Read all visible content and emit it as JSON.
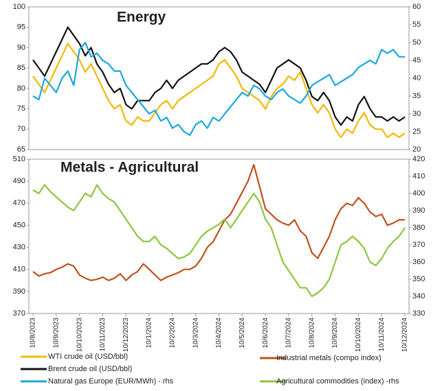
{
  "chart_data": [
    {
      "type": "line",
      "title": "Energy",
      "ylim": [
        65,
        100
      ],
      "yticks": [
        65,
        70,
        75,
        80,
        85,
        90,
        95,
        100
      ],
      "y2lim": [
        20,
        60
      ],
      "y2ticks": [
        20,
        25,
        30,
        35,
        40,
        45,
        50,
        55,
        60
      ],
      "series": [
        {
          "name": "WTI crude oil (USD/bbl)",
          "color": "#f5b800",
          "values": [
            83,
            81,
            79,
            82,
            85,
            88,
            91,
            89,
            87,
            84,
            86,
            83,
            80,
            77,
            75,
            76,
            72,
            71,
            73,
            72,
            72,
            74,
            76,
            77,
            75,
            77,
            78,
            79,
            80,
            81,
            82,
            83,
            86,
            87,
            85,
            83,
            80,
            79,
            78,
            77,
            75,
            78,
            80,
            81,
            83,
            82,
            84,
            80,
            76,
            74,
            76,
            74,
            70,
            68,
            70,
            69,
            72,
            74,
            71,
            70,
            70,
            68,
            69,
            68,
            69
          ]
        },
        {
          "name": "Brent crude oil (USD/bbl)",
          "color": "#111111",
          "values": [
            87,
            85,
            83,
            86,
            89,
            92,
            95,
            93,
            91,
            88,
            90,
            86,
            84,
            81,
            79,
            80,
            76,
            75,
            77,
            77,
            77,
            79,
            80,
            82,
            80,
            82,
            83,
            84,
            85,
            86,
            86,
            87,
            89,
            90,
            89,
            87,
            84,
            83,
            82,
            81,
            79,
            82,
            85,
            86,
            87,
            86,
            85,
            82,
            78,
            77,
            79,
            77,
            73,
            71,
            73,
            72,
            76,
            78,
            75,
            73,
            73,
            72,
            73,
            72,
            73
          ]
        },
        {
          "name": "Natural gas Europe (EUR/MWh) - rhs",
          "color": "#1aa7e0",
          "axis": "y2",
          "values": [
            35,
            34,
            40,
            38,
            36,
            40,
            42,
            38,
            48,
            50,
            46,
            47,
            45,
            44,
            42,
            42,
            38,
            36,
            34,
            32,
            30,
            31,
            28,
            29,
            26,
            27,
            25,
            24,
            27,
            28,
            26,
            29,
            28,
            30,
            32,
            34,
            36,
            35,
            38,
            37,
            35,
            34,
            36,
            37,
            35,
            34,
            33,
            35,
            38,
            39,
            40,
            41,
            38,
            39,
            40,
            41,
            43,
            44,
            45,
            44,
            48,
            47,
            48,
            46,
            46
          ]
        }
      ]
    },
    {
      "type": "line",
      "title": "Metals - Agricultural",
      "ylim": [
        370,
        510
      ],
      "yticks": [
        370,
        390,
        410,
        430,
        450,
        470,
        490,
        510
      ],
      "y2lim": [
        330,
        420
      ],
      "y2ticks": [
        330,
        340,
        350,
        360,
        370,
        380,
        390,
        400,
        410,
        420
      ],
      "categories": [
        "10/8/2023",
        null,
        null,
        null,
        "10/9/2023",
        null,
        null,
        null,
        "10/10/2023",
        null,
        null,
        null,
        "10/11/2023",
        null,
        null,
        null,
        "10/12/2023",
        null,
        null,
        null,
        "10/1/2024",
        null,
        null,
        null,
        "10/2/2024",
        null,
        null,
        null,
        "10/3/2024",
        null,
        null,
        null,
        "10/4/2024",
        null,
        null,
        null,
        "10/5/2024",
        null,
        null,
        null,
        "10/6/2024",
        null,
        null,
        null,
        "10/7/2024",
        null,
        null,
        null,
        "10/8/2024",
        null,
        null,
        null,
        "10/9/2024",
        null,
        null,
        null,
        "10/10/2024",
        null,
        null,
        null,
        "10/11/2024",
        null,
        null,
        null,
        "10/12/2024"
      ],
      "series": [
        {
          "name": "Industrial metals (compo index)",
          "color": "#c0501a",
          "values": [
            408,
            404,
            406,
            407,
            410,
            412,
            415,
            413,
            405,
            402,
            400,
            401,
            403,
            400,
            402,
            406,
            400,
            405,
            408,
            415,
            410,
            405,
            400,
            403,
            405,
            407,
            410,
            410,
            413,
            420,
            430,
            435,
            445,
            455,
            460,
            470,
            480,
            490,
            505,
            485,
            465,
            460,
            455,
            452,
            450,
            455,
            445,
            440,
            425,
            420,
            430,
            440,
            455,
            465,
            470,
            468,
            475,
            470,
            462,
            458,
            460,
            450,
            452,
            455,
            455
          ]
        },
        {
          "name": "Agricultural commodities (index) -rhs",
          "color": "#8dc63f",
          "axis": "y2",
          "values": [
            402,
            400,
            405,
            401,
            398,
            395,
            392,
            390,
            395,
            400,
            398,
            405,
            400,
            397,
            395,
            390,
            385,
            380,
            375,
            372,
            372,
            375,
            370,
            368,
            365,
            362,
            363,
            365,
            370,
            375,
            378,
            380,
            382,
            385,
            380,
            385,
            390,
            395,
            400,
            395,
            385,
            380,
            370,
            360,
            355,
            350,
            345,
            345,
            340,
            342,
            345,
            350,
            360,
            370,
            372,
            375,
            372,
            368,
            360,
            358,
            362,
            368,
            372,
            375,
            380
          ]
        }
      ]
    }
  ]
}
